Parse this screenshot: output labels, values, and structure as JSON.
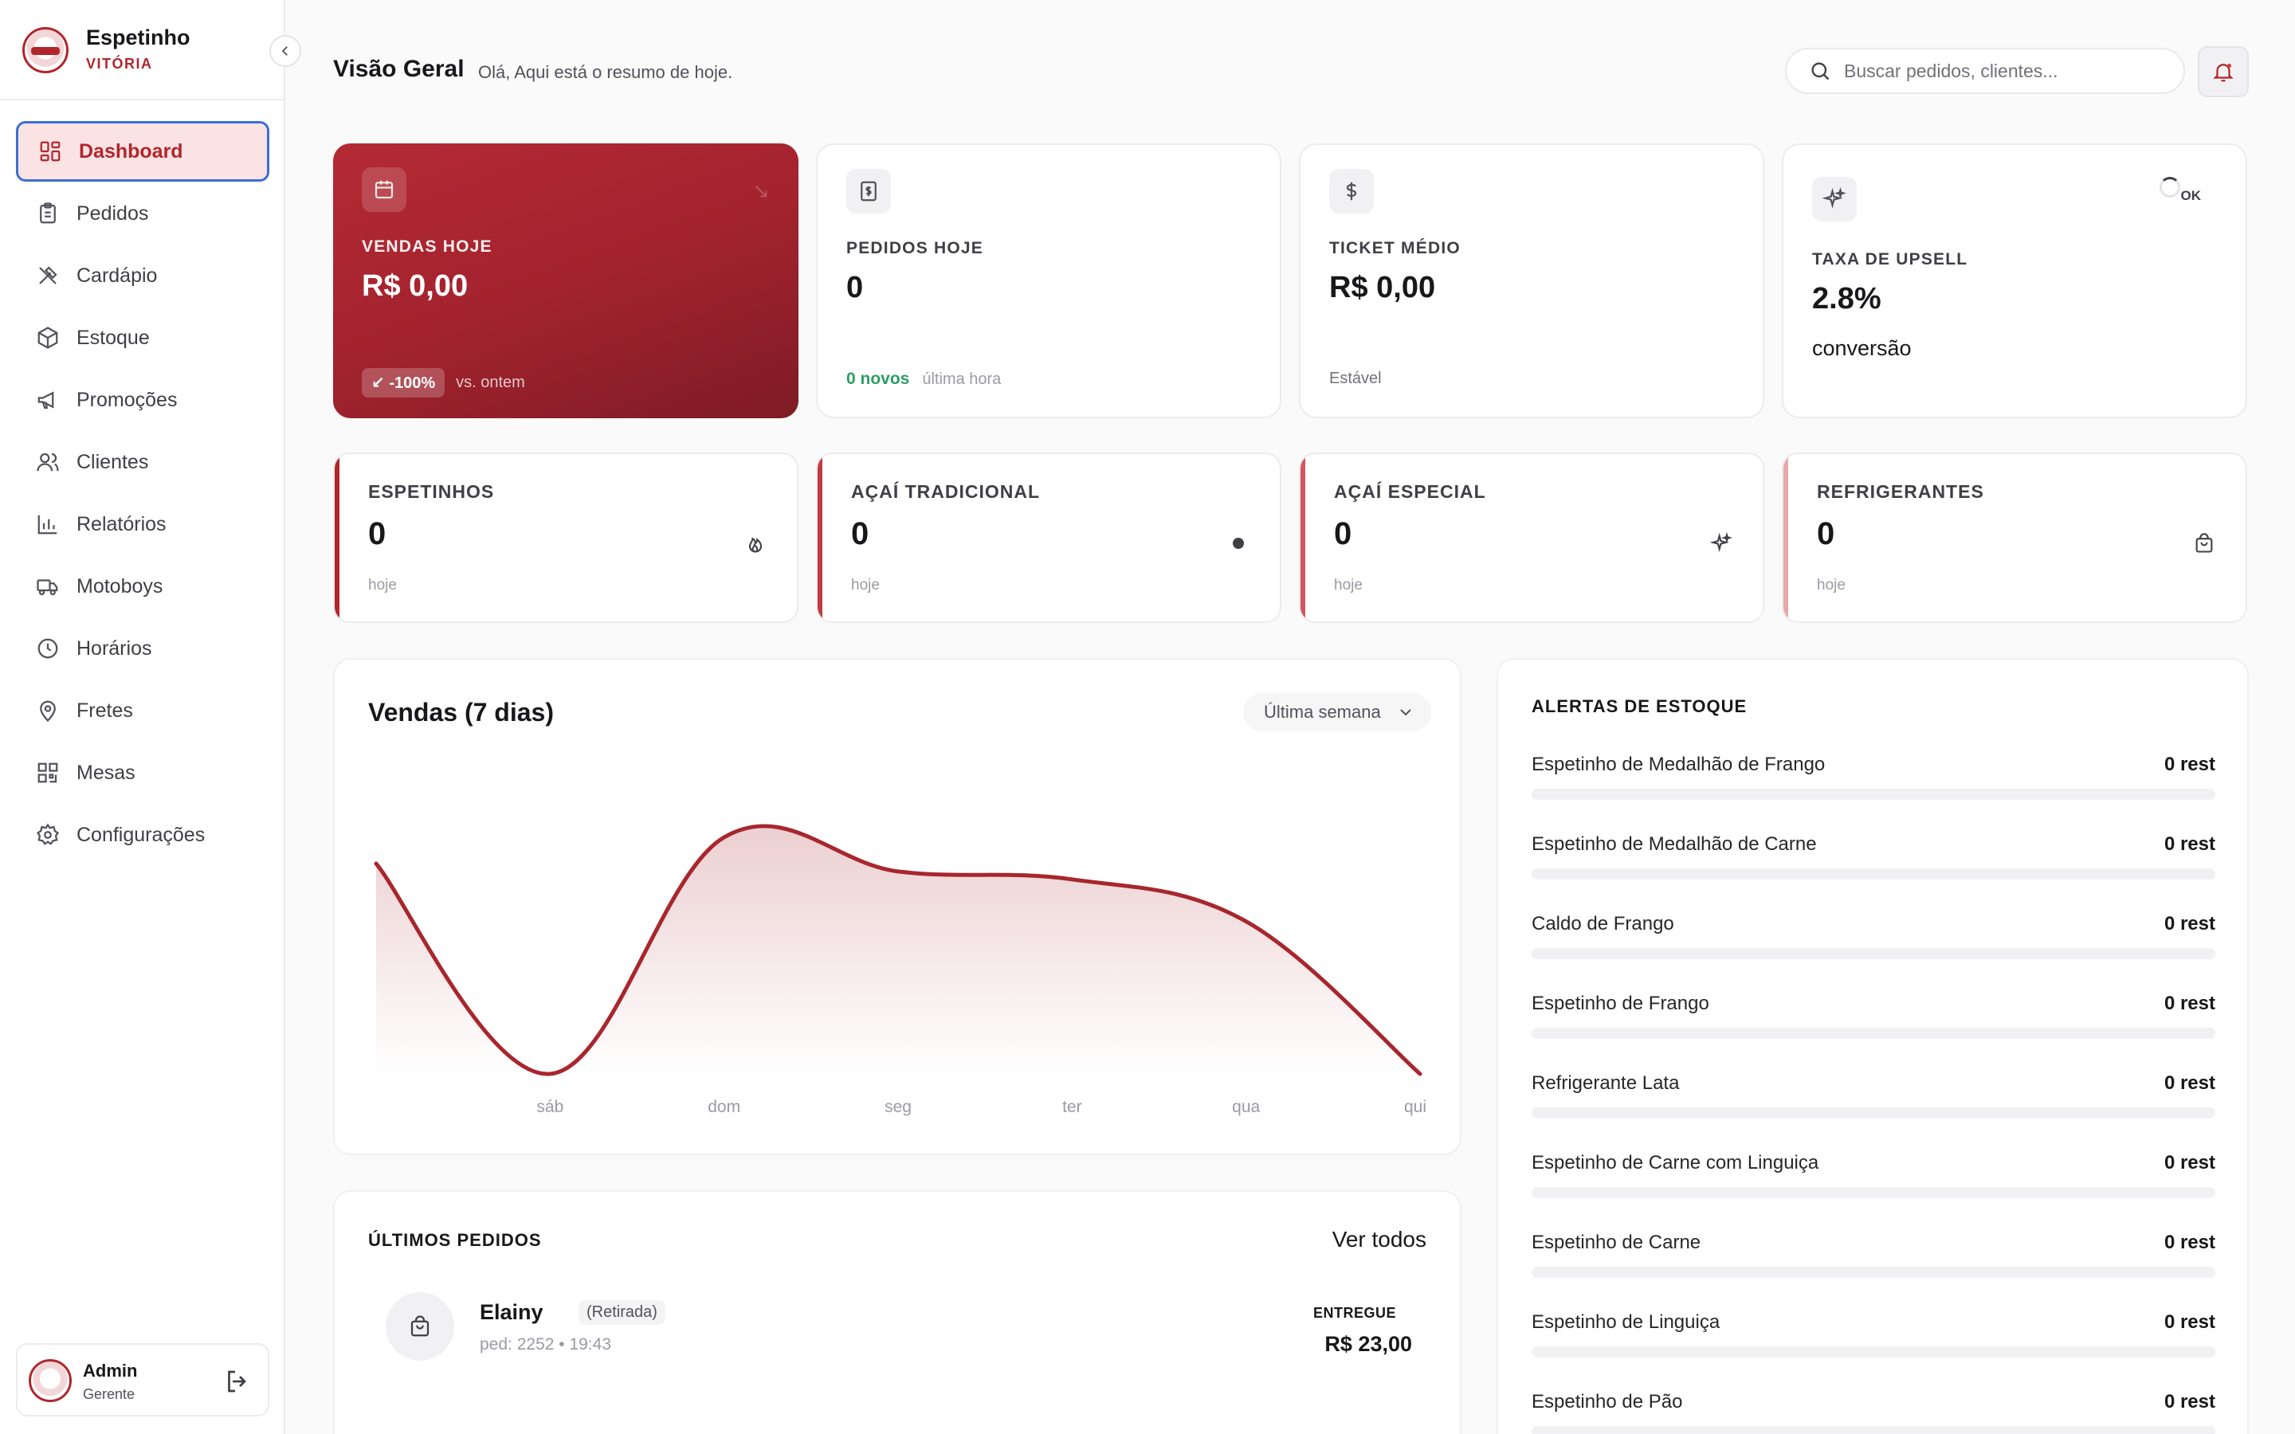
{
  "brand": {
    "name": "Espetinho",
    "sub": "VITÓRIA"
  },
  "sidebar": {
    "items": [
      {
        "label": "Dashboard",
        "icon": "dashboard-icon"
      },
      {
        "label": "Pedidos",
        "icon": "clipboard-icon"
      },
      {
        "label": "Cardápio",
        "icon": "utensils-icon"
      },
      {
        "label": "Estoque",
        "icon": "box-icon"
      },
      {
        "label": "Promoções",
        "icon": "megaphone-icon"
      },
      {
        "label": "Clientes",
        "icon": "users-icon"
      },
      {
        "label": "Relatórios",
        "icon": "bar-chart-icon"
      },
      {
        "label": "Motoboys",
        "icon": "truck-icon"
      },
      {
        "label": "Horários",
        "icon": "clock-icon"
      },
      {
        "label": "Fretes",
        "icon": "map-pin-icon"
      },
      {
        "label": "Mesas",
        "icon": "qr-code-icon"
      },
      {
        "label": "Configurações",
        "icon": "gear-icon"
      }
    ],
    "active_index": 0
  },
  "user": {
    "name": "Admin",
    "role": "Gerente"
  },
  "header": {
    "title": "Visão Geral",
    "subtitle": "Olá, Aqui está o resumo de hoje.",
    "search_placeholder": "Buscar pedidos, clientes..."
  },
  "stats": [
    {
      "label": "VENDAS HOJE",
      "value": "R$ 0,00",
      "badge": "-100%",
      "foot": "vs. ontem"
    },
    {
      "label": "PEDIDOS HOJE",
      "value": "0",
      "highlight": "0 novos",
      "foot": "última hora"
    },
    {
      "label": "TICKET MÉDIO",
      "value": "R$ 0,00",
      "foot": "Estável"
    },
    {
      "label": "TAXA DE UPSELL",
      "value": "2.8%",
      "foot": "conversão",
      "status": "OK"
    }
  ],
  "categories": [
    {
      "label": "ESPETINHOS",
      "value": "0",
      "sub": "hoje",
      "icon": "flame-icon",
      "accent": "#b1262c"
    },
    {
      "label": "AÇAÍ TRADICIONAL",
      "value": "0",
      "sub": "hoje",
      "icon": "dot-icon",
      "accent": "#c23a43"
    },
    {
      "label": "AÇAÍ ESPECIAL",
      "value": "0",
      "sub": "hoje",
      "icon": "sparkles-icon",
      "accent": "#d4555d"
    },
    {
      "label": "REFRIGERANTES",
      "value": "0",
      "sub": "hoje",
      "icon": "shopping-bag-icon",
      "accent": "#eba6aa"
    }
  ],
  "sales_chart": {
    "title": "Vendas (7 dias)",
    "range": "Última semana",
    "chart_data": {
      "type": "area",
      "x": [
        "",
        "sáb",
        "dom",
        "seg",
        "ter",
        "qua",
        "qui"
      ],
      "values": [
        0.8,
        0.0,
        0.9,
        0.77,
        0.74,
        0.58,
        0.0
      ],
      "color": "#a8262d"
    }
  },
  "orders": {
    "title": "ÚLTIMOS PEDIDOS",
    "see_all": "Ver todos",
    "items": [
      {
        "name": "Elainy",
        "type": "(Retirada)",
        "meta": "ped: 2252 • 19:43",
        "status": "ENTREGUE",
        "total": "R$ 23,00"
      }
    ]
  },
  "alerts": {
    "title": "ALERTAS DE ESTOQUE",
    "items": [
      {
        "name": "Espetinho de Medalhão de Frango",
        "qty": "0 rest",
        "level": 0
      },
      {
        "name": "Espetinho de Medalhão de Carne",
        "qty": "0 rest",
        "level": 0
      },
      {
        "name": "Caldo de Frango",
        "qty": "0 rest",
        "level": 0
      },
      {
        "name": "Espetinho de Frango",
        "qty": "0 rest",
        "level": 0
      },
      {
        "name": "Refrigerante Lata",
        "qty": "0 rest",
        "level": 0
      },
      {
        "name": "Espetinho de Carne com Linguiça",
        "qty": "0 rest",
        "level": 0
      },
      {
        "name": "Espetinho de Carne",
        "qty": "0 rest",
        "level": 0
      },
      {
        "name": "Espetinho de Linguiça",
        "qty": "0 rest",
        "level": 0
      },
      {
        "name": "Espetinho de Pão",
        "qty": "0 rest",
        "level": 0
      }
    ]
  }
}
